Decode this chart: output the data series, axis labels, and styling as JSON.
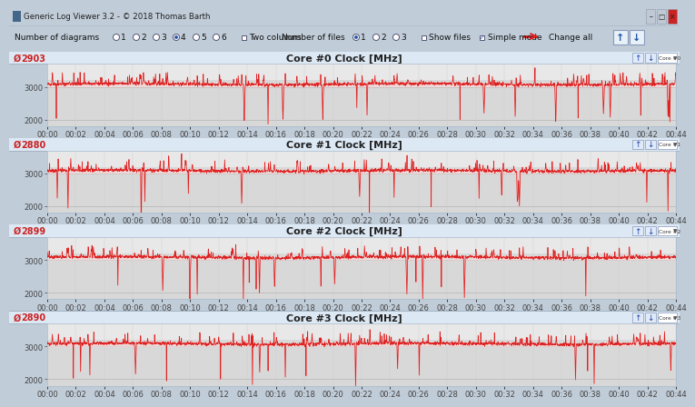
{
  "title_bar": "Generic Log Viewer 3.2 - © 2018 Thomas Barth",
  "charts": [
    {
      "title": "Core #0 Clock [MHz]",
      "avg": "2903",
      "label": "Core #0 Clock [MHz]"
    },
    {
      "title": "Core #1 Clock [MHz]",
      "avg": "2880",
      "label": "Core #1 Clock [MHz]"
    },
    {
      "title": "Core #2 Clock [MHz]",
      "avg": "2899",
      "label": "Core #2 Clock [MHz]"
    },
    {
      "title": "Core #3 Clock [MHz]",
      "avg": "2890",
      "label": "Core #3 Clock [MHz]"
    }
  ],
  "x_ticks": [
    "00:00",
    "00:02",
    "00:04",
    "00:06",
    "00:08",
    "00:10",
    "00:12",
    "00:14",
    "00:16",
    "00:18",
    "00:20",
    "00:22",
    "00:24",
    "00:26",
    "00:28",
    "00:30",
    "00:32",
    "00:34",
    "00:36",
    "00:38",
    "00:40",
    "00:42",
    "00:44"
  ],
  "ylim": [
    1800,
    3700
  ],
  "y_ticks": [
    2000,
    3000
  ],
  "base_freq": 3000,
  "upper_band": 3200,
  "line_color": "#dd2222",
  "fill_color": "#f0b0b0",
  "chart_bg_lower": "#d8d8d8",
  "chart_bg_upper": "#e8e8e8",
  "panel_header_bg": "#e8eef4",
  "panel_bg": "#f4f4f4",
  "toolbar_bg": "#d8e4f0",
  "titlebar_bg": "#c8d4e0",
  "window_bg": "#c0ccd8",
  "border_color": "#8899aa",
  "font_size_title": 7.5,
  "font_size_avg": 7,
  "font_size_tick": 6,
  "font_size_label": 6
}
